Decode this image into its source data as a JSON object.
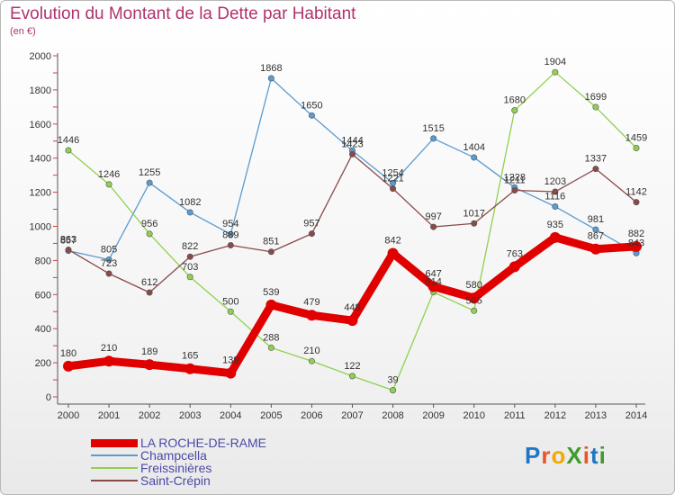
{
  "title": "Evolution du Montant de la Dette par Habitant",
  "unit_label": "(en €)",
  "logo": {
    "text": "ProXiti",
    "letter_colors": [
      "#1f77c4",
      "#e8552a",
      "#f2a900",
      "#3f9c2b",
      "#e8552a",
      "#1f77c4",
      "#3f9c2b"
    ]
  },
  "chart_data": {
    "type": "line",
    "x": [
      "2000",
      "2001",
      "2002",
      "2003",
      "2004",
      "2005",
      "2006",
      "2007",
      "2008",
      "2009",
      "2010",
      "2011",
      "2012",
      "2013",
      "2014"
    ],
    "ylim": [
      0,
      2000
    ],
    "yticks": [
      "0",
      "200",
      "400",
      "600",
      "800",
      "1000",
      "1200",
      "1400",
      "1600",
      "1800",
      "2000"
    ],
    "grid": false,
    "legend_position": "bottom-left",
    "series": [
      {
        "name": "LA ROCHE-DE-RAME",
        "color": "#e00000",
        "thick": true,
        "values": [
          180,
          210,
          189,
          165,
          139,
          539,
          479,
          448,
          842,
          647,
          580,
          763,
          935,
          867,
          882
        ],
        "labels": [
          "180",
          "210",
          "189",
          "165",
          "139",
          "539",
          "479",
          "448",
          "842",
          "647",
          "580",
          "763",
          "935",
          "867",
          "882"
        ]
      },
      {
        "name": "Champcella",
        "color": "#5b9bd0",
        "thick": false,
        "values": [
          857,
          805,
          1255,
          1082,
          954,
          1868,
          1650,
          1444,
          1254,
          1515,
          1404,
          1228,
          1116,
          981,
          843
        ],
        "labels": [
          "857",
          "805",
          "1255",
          "1082",
          "954",
          "1868",
          "1650",
          "1444",
          "1254",
          "1515",
          "1404",
          "1228",
          "1116",
          "981",
          "843"
        ]
      },
      {
        "name": "Freissinières",
        "color": "#90d050",
        "thick": false,
        "values": [
          1446,
          1246,
          956,
          703,
          500,
          288,
          210,
          122,
          39,
          614,
          505,
          1680,
          1904,
          1699,
          1459
        ],
        "labels": [
          "1446",
          "1246",
          "956",
          "703",
          "500",
          "288",
          "210",
          "122",
          "39",
          "614",
          "505",
          "1680",
          "1904",
          "1699",
          "1459"
        ]
      },
      {
        "name": "Saint-Crépin",
        "color": "#8a4a4a",
        "thick": false,
        "values": [
          863,
          723,
          612,
          822,
          889,
          851,
          957,
          1423,
          1221,
          997,
          1017,
          1211,
          1203,
          1337,
          1142
        ],
        "labels": [
          "863",
          "723",
          "612",
          "822",
          "889",
          "851",
          "957",
          "1423",
          "1221",
          "997",
          "1017",
          "1211",
          "1203",
          "1337",
          "1142"
        ]
      }
    ]
  }
}
